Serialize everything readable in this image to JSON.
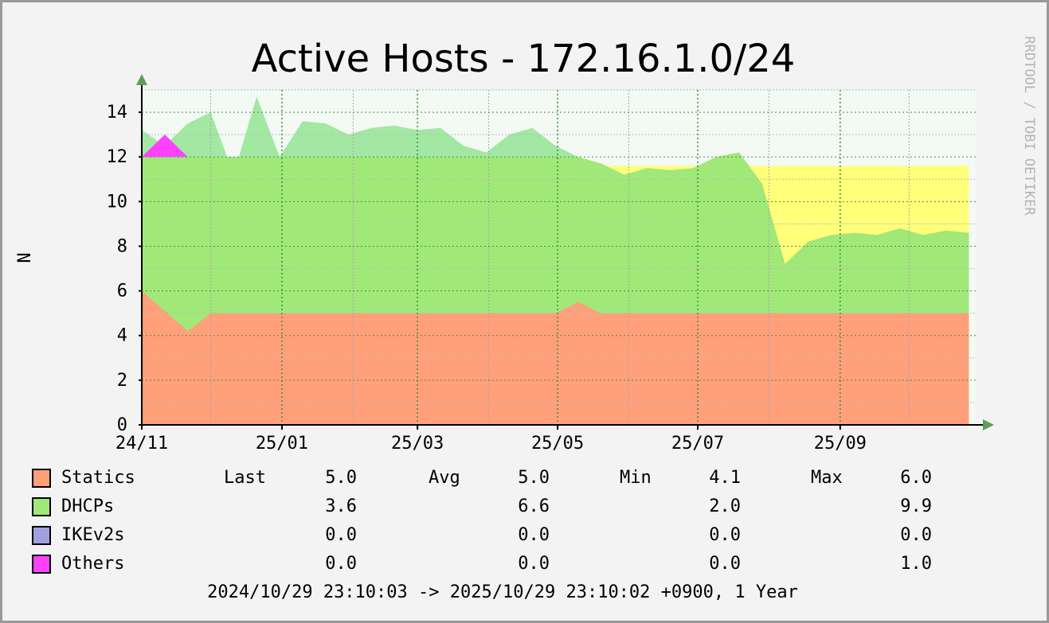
{
  "chart_data": {
    "type": "area",
    "title": "Active Hosts - 172.16.1.0/24",
    "y_label": "N",
    "side_label": "RRDTOOL / TOBI OETIKER",
    "footer": "2024/10/29 23:10:03 -> 2025/10/29 23:10:02 +0900, 1 Year",
    "stacked": true,
    "x": [
      0,
      10,
      20,
      30,
      40,
      50,
      60,
      70,
      80,
      90,
      100,
      110,
      120,
      130,
      140,
      150,
      160,
      170,
      180,
      190,
      200,
      210,
      220,
      230,
      240,
      250,
      260,
      270,
      280,
      290,
      300,
      310,
      320,
      330,
      340,
      350,
      360
    ],
    "xlim": [
      0,
      363
    ],
    "xticks": [
      {
        "value": 0,
        "label": "24/11"
      },
      {
        "value": 61,
        "label": "25/01"
      },
      {
        "value": 120,
        "label": "25/03"
      },
      {
        "value": 181,
        "label": "25/05"
      },
      {
        "value": 242,
        "label": "25/07"
      },
      {
        "value": 304,
        "label": "25/09"
      }
    ],
    "xminorticks": [
      30,
      92,
      151,
      212,
      273,
      334
    ],
    "ylim": [
      0,
      15
    ],
    "yticks": [
      0,
      2,
      4,
      6,
      8,
      10,
      12,
      14
    ],
    "yminorticks": [
      1,
      3,
      5,
      7,
      9,
      11,
      13,
      15
    ],
    "grid": true,
    "fills": [
      {
        "color": "#ffff7a",
        "values": [
          12,
          12,
          12,
          12,
          12,
          12,
          12,
          12,
          12,
          12,
          12,
          12,
          12,
          12,
          12,
          12,
          12,
          12,
          12,
          11.6,
          11.6,
          11.6,
          11.6,
          11.6,
          11.6,
          11.6,
          11.6,
          11.6,
          11.6,
          11.6,
          11.6,
          11.6,
          11.6,
          11.6,
          11.6,
          11.6,
          11.6
        ]
      },
      {
        "color": "#a2e8a2",
        "values": [
          13.2,
          12.5,
          13.5,
          14,
          11.2,
          14.7,
          12,
          13.6,
          13.5,
          13,
          13.3,
          13.4,
          13.2,
          13.3,
          12.5,
          12.2,
          13,
          13.3,
          12.5,
          12,
          11.7,
          11.2,
          11.5,
          11.4,
          11.5,
          12,
          12.2,
          10.8,
          7.2,
          8.2,
          8.5,
          8.6,
          8.5,
          8.8,
          8.5,
          8.7,
          8.6
        ]
      }
    ],
    "series": [
      {
        "name": "Statics",
        "color": "#ffa07a",
        "values": [
          6,
          5.1,
          4.2,
          5,
          5,
          5,
          5,
          5,
          5,
          5,
          5,
          5,
          5,
          5,
          5,
          5,
          5,
          5,
          5,
          5.5,
          5,
          5,
          5,
          5,
          5,
          5,
          5,
          5,
          5,
          5,
          5,
          5,
          5,
          5,
          5,
          5,
          5
        ]
      },
      {
        "name": "DHCPs",
        "color": "#a0e878",
        "values": [
          6,
          6.9,
          7.8,
          7,
          7,
          7,
          7,
          7,
          7,
          7,
          7,
          7,
          7,
          7,
          7,
          7,
          7,
          7,
          7,
          6.5,
          6.7,
          6.2,
          6.5,
          6.4,
          6.5,
          7,
          7.2,
          5.8,
          2.2,
          3.2,
          3.5,
          3.6,
          3.5,
          3.8,
          3.5,
          3.7,
          3.6
        ]
      },
      {
        "name": "IKEv2s",
        "color": "#a0a0e0",
        "values": [
          0,
          0,
          0,
          0,
          0,
          0,
          0,
          0,
          0,
          0,
          0,
          0,
          0,
          0,
          0,
          0,
          0,
          0,
          0,
          0,
          0,
          0,
          0,
          0,
          0,
          0,
          0,
          0,
          0,
          0,
          0,
          0,
          0,
          0,
          0,
          0,
          0
        ]
      },
      {
        "name": "Others",
        "color": "#ff40ff",
        "values": [
          0,
          1,
          0,
          0,
          0,
          0,
          0,
          0,
          0,
          0,
          0,
          0,
          0,
          0,
          0,
          0,
          0,
          0,
          0,
          0,
          0,
          0,
          0,
          0,
          0,
          0,
          0,
          0,
          0,
          0,
          0,
          0,
          0,
          0,
          0,
          0,
          0
        ]
      }
    ],
    "legend": {
      "headers": [
        "Last",
        "Avg",
        "Min",
        "Max"
      ],
      "rows": [
        [
          "5.0",
          "5.0",
          "4.1",
          "6.0"
        ],
        [
          "3.6",
          "6.6",
          "2.0",
          "9.9"
        ],
        [
          "0.0",
          "0.0",
          "0.0",
          "0.0"
        ],
        [
          "0.0",
          "0.0",
          "0.0",
          "1.0"
        ]
      ]
    }
  }
}
